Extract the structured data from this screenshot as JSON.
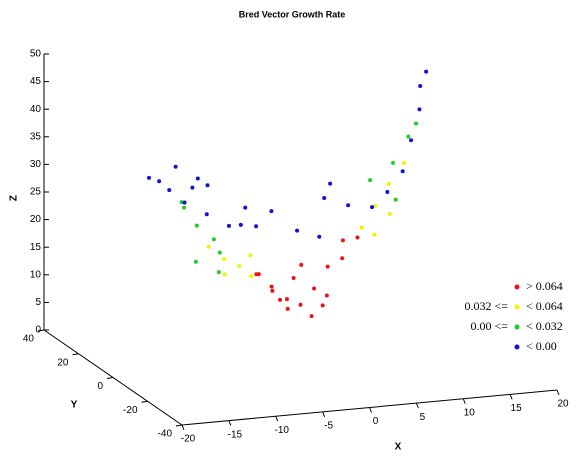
{
  "chart_data": {
    "type": "scatter3d",
    "title": "Bred Vector Growth Rate",
    "x_label": "X",
    "y_label": "Y",
    "z_label": "Z",
    "xlim": [
      -20,
      20
    ],
    "xticks": [
      -20,
      -15,
      -10,
      -5,
      0,
      5,
      10,
      15,
      20
    ],
    "ylim": [
      -40,
      40
    ],
    "yticks": [
      -40,
      -20,
      0,
      20,
      40
    ],
    "zlim": [
      0,
      50
    ],
    "zticks": [
      0,
      5,
      10,
      15,
      20,
      25,
      30,
      35,
      40,
      45,
      50
    ],
    "legend": "lower right",
    "series": [
      {
        "name": "> 0.064",
        "color": "#ee1111",
        "x": [
          0,
          2,
          -2,
          4,
          -4,
          1,
          -1,
          3,
          -3,
          5,
          -5,
          6,
          0,
          2,
          -2,
          7,
          -6,
          1
        ],
        "y": [
          0,
          3,
          -3,
          6,
          -5,
          -1,
          2,
          1,
          0,
          3,
          -3,
          8,
          4,
          -2,
          1,
          5,
          -7,
          5
        ],
        "z": [
          10,
          12,
          12,
          15,
          15,
          8,
          9,
          11,
          13,
          17,
          17,
          19,
          14,
          10,
          11,
          20,
          18,
          16
        ]
      },
      {
        "name": "< 0.064",
        "legend_prefix": "0.032 <=",
        "color": "#f2f200",
        "x": [
          -8,
          -10,
          -12,
          -9,
          8,
          10,
          12,
          9,
          -7,
          11,
          14,
          -6
        ],
        "y": [
          -8,
          -10,
          -12,
          -5,
          8,
          11,
          14,
          6,
          -9,
          8,
          16,
          -4
        ],
        "z": [
          20,
          22,
          25,
          18,
          21,
          24,
          27,
          20,
          22,
          23,
          30,
          17
        ]
      },
      {
        "name": "< 0.032",
        "legend_prefix": "0.00 <=",
        "color": "#22cc22",
        "x": [
          -12,
          -14,
          -15,
          -11,
          13,
          15,
          -13,
          12,
          16,
          -16,
          10,
          -10
        ],
        "y": [
          -15,
          -16,
          -14,
          -13,
          17,
          19,
          -10,
          10,
          20,
          -18,
          14,
          -7
        ],
        "z": [
          27,
          30,
          33,
          24,
          30,
          34,
          22,
          25,
          36,
          35,
          28,
          19
        ]
      },
      {
        "name": "< 0.00",
        "color": "#1010dd",
        "x": [
          -18,
          -16,
          -14,
          -12,
          -10,
          -8,
          -6,
          -4,
          0,
          2,
          -17,
          -15,
          18,
          17,
          16,
          14,
          12,
          10,
          8,
          6,
          4,
          -9,
          -13,
          -7,
          5,
          -2
        ],
        "y": [
          -10,
          -5,
          0,
          2,
          0,
          -2,
          2,
          4,
          2,
          0,
          -20,
          -22,
          25,
          23,
          18,
          12,
          6,
          4,
          2,
          5,
          8,
          5,
          -8,
          -6,
          10,
          6
        ],
        "z": [
          38,
          36,
          33,
          30,
          28,
          26,
          25,
          24,
          23,
          22,
          42,
          40,
          44,
          42,
          39,
          35,
          31,
          28,
          26,
          26,
          27,
          32,
          35,
          30,
          29,
          26
        ]
      }
    ]
  }
}
